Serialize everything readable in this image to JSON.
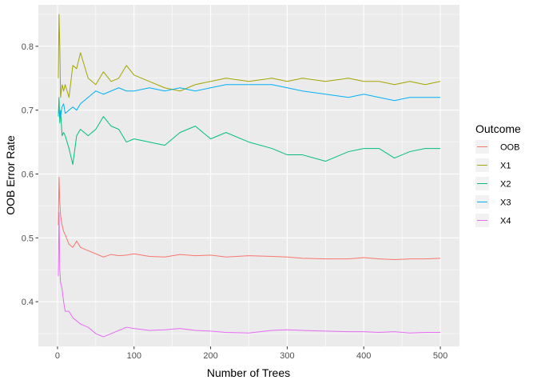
{
  "chart_data": {
    "type": "line",
    "xlabel": "Number of Trees",
    "ylabel": "OOB Error Rate",
    "xlim": [
      -25,
      525
    ],
    "ylim": [
      0.33,
      0.865
    ],
    "x_ticks": [
      0,
      100,
      200,
      300,
      400,
      500
    ],
    "y_ticks": [
      0.4,
      0.5,
      0.6,
      0.7,
      0.8
    ],
    "y_tick_labels": [
      "0.4",
      "0.5",
      "0.6",
      "0.7",
      "0.8"
    ],
    "grid": true,
    "legend": {
      "title": "Outcome",
      "position": "right"
    },
    "series": [
      {
        "name": "OOB",
        "color": "#F8766D",
        "x": [
          1,
          2,
          3,
          4,
          6,
          8,
          10,
          15,
          20,
          25,
          30,
          40,
          50,
          60,
          70,
          80,
          90,
          100,
          120,
          140,
          160,
          180,
          200,
          220,
          250,
          280,
          300,
          320,
          350,
          380,
          400,
          420,
          440,
          460,
          480,
          500
        ],
        "y": [
          0.52,
          0.595,
          0.555,
          0.535,
          0.52,
          0.51,
          0.505,
          0.49,
          0.485,
          0.495,
          0.485,
          0.48,
          0.475,
          0.47,
          0.474,
          0.472,
          0.473,
          0.475,
          0.471,
          0.47,
          0.474,
          0.472,
          0.473,
          0.47,
          0.472,
          0.471,
          0.47,
          0.468,
          0.467,
          0.467,
          0.469,
          0.467,
          0.466,
          0.467,
          0.467,
          0.468
        ]
      },
      {
        "name": "X1",
        "color": "#A3A500",
        "x": [
          1,
          2,
          3,
          4,
          6,
          8,
          10,
          15,
          20,
          25,
          30,
          40,
          50,
          60,
          70,
          80,
          90,
          100,
          120,
          140,
          160,
          180,
          200,
          220,
          250,
          280,
          300,
          320,
          350,
          380,
          400,
          420,
          440,
          460,
          480,
          500
        ],
        "y": [
          0.75,
          0.85,
          0.8,
          0.72,
          0.74,
          0.73,
          0.74,
          0.72,
          0.77,
          0.765,
          0.79,
          0.75,
          0.74,
          0.76,
          0.745,
          0.75,
          0.77,
          0.755,
          0.745,
          0.735,
          0.73,
          0.74,
          0.745,
          0.75,
          0.745,
          0.75,
          0.745,
          0.75,
          0.745,
          0.75,
          0.745,
          0.745,
          0.74,
          0.745,
          0.74,
          0.745
        ]
      },
      {
        "name": "X2",
        "color": "#00BF7D",
        "x": [
          1,
          2,
          3,
          4,
          6,
          8,
          10,
          15,
          20,
          25,
          30,
          40,
          50,
          60,
          70,
          80,
          90,
          100,
          120,
          140,
          160,
          180,
          200,
          220,
          250,
          280,
          300,
          320,
          350,
          380,
          400,
          420,
          440,
          460,
          480,
          500
        ],
        "y": [
          0.69,
          0.72,
          0.68,
          0.7,
          0.66,
          0.665,
          0.66,
          0.64,
          0.615,
          0.66,
          0.67,
          0.66,
          0.67,
          0.69,
          0.675,
          0.67,
          0.65,
          0.655,
          0.65,
          0.645,
          0.665,
          0.675,
          0.655,
          0.665,
          0.65,
          0.64,
          0.63,
          0.63,
          0.62,
          0.635,
          0.64,
          0.64,
          0.625,
          0.635,
          0.64,
          0.64
        ]
      },
      {
        "name": "X3",
        "color": "#00B0F6",
        "x": [
          1,
          2,
          3,
          4,
          6,
          8,
          10,
          15,
          20,
          25,
          30,
          40,
          50,
          60,
          70,
          80,
          90,
          100,
          120,
          140,
          160,
          180,
          200,
          220,
          250,
          280,
          300,
          320,
          350,
          380,
          400,
          420,
          440,
          460,
          480,
          500
        ],
        "y": [
          0.695,
          0.7,
          0.69,
          0.69,
          0.705,
          0.71,
          0.695,
          0.7,
          0.705,
          0.7,
          0.71,
          0.72,
          0.73,
          0.725,
          0.73,
          0.735,
          0.73,
          0.73,
          0.735,
          0.73,
          0.735,
          0.73,
          0.735,
          0.74,
          0.74,
          0.74,
          0.735,
          0.73,
          0.725,
          0.72,
          0.725,
          0.72,
          0.715,
          0.72,
          0.72,
          0.72
        ]
      },
      {
        "name": "X4",
        "color": "#E76BF3",
        "x": [
          1,
          2,
          3,
          4,
          6,
          8,
          10,
          15,
          20,
          25,
          30,
          40,
          50,
          60,
          70,
          80,
          90,
          100,
          120,
          140,
          160,
          180,
          200,
          220,
          250,
          280,
          300,
          320,
          350,
          380,
          400,
          420,
          440,
          460,
          480,
          500
        ],
        "y": [
          0.44,
          0.54,
          0.45,
          0.43,
          0.42,
          0.4,
          0.385,
          0.385,
          0.375,
          0.37,
          0.365,
          0.36,
          0.35,
          0.345,
          0.35,
          0.355,
          0.36,
          0.358,
          0.355,
          0.356,
          0.358,
          0.355,
          0.354,
          0.352,
          0.351,
          0.355,
          0.356,
          0.355,
          0.354,
          0.353,
          0.353,
          0.352,
          0.353,
          0.351,
          0.352,
          0.352
        ]
      }
    ]
  }
}
